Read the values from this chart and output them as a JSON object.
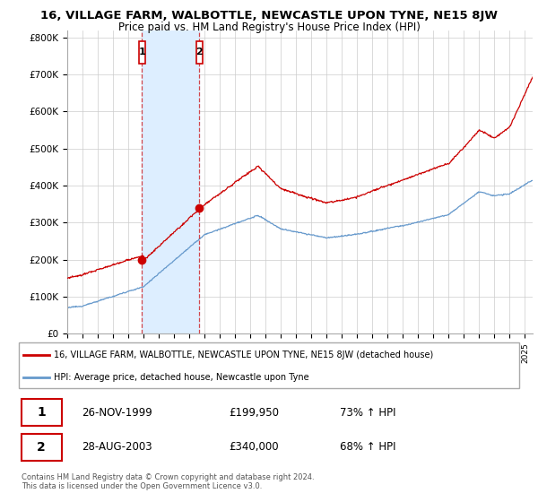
{
  "title": "16, VILLAGE FARM, WALBOTTLE, NEWCASTLE UPON TYNE, NE15 8JW",
  "subtitle": "Price paid vs. HM Land Registry's House Price Index (HPI)",
  "ylabel_ticks": [
    "£0",
    "£100K",
    "£200K",
    "£300K",
    "£400K",
    "£500K",
    "£600K",
    "£700K",
    "£800K"
  ],
  "ytick_values": [
    0,
    100000,
    200000,
    300000,
    400000,
    500000,
    600000,
    700000,
    800000
  ],
  "ylim": [
    0,
    820000
  ],
  "xlim_start": 1995.0,
  "xlim_end": 2025.5,
  "sale1_date": 1999.9,
  "sale1_price": 199950,
  "sale2_date": 2003.65,
  "sale2_price": 340000,
  "hpi_color": "#6699cc",
  "price_color": "#cc0000",
  "dot_color": "#cc0000",
  "vline_color": "#cc0000",
  "shade_color": "#ddeeff",
  "legend_line1": "16, VILLAGE FARM, WALBOTTLE, NEWCASTLE UPON TYNE, NE15 8JW (detached house)",
  "legend_line2": "HPI: Average price, detached house, Newcastle upon Tyne",
  "table_row1_num": "1",
  "table_row1_date": "26-NOV-1999",
  "table_row1_price": "£199,950",
  "table_row1_hpi": "73% ↑ HPI",
  "table_row2_num": "2",
  "table_row2_date": "28-AUG-2003",
  "table_row2_price": "£340,000",
  "table_row2_hpi": "68% ↑ HPI",
  "footer": "Contains HM Land Registry data © Crown copyright and database right 2024.\nThis data is licensed under the Open Government Licence v3.0.",
  "background_color": "#ffffff",
  "grid_color": "#cccccc"
}
